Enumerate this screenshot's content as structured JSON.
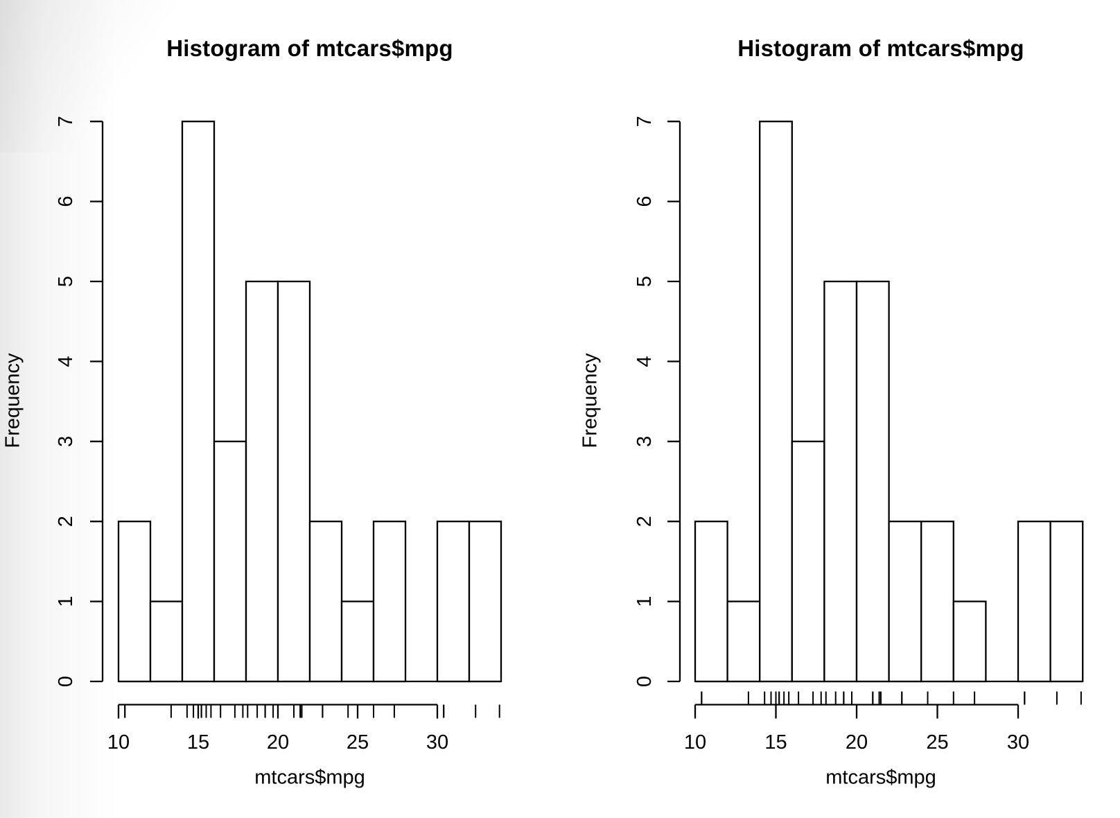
{
  "window": {
    "background": "#ffffff",
    "edge_shade_color": "#e9e9e9",
    "line_color": "#000000",
    "bar_fill": "#ffffff"
  },
  "panels": [
    {
      "title": "Histogram of mtcars$mpg",
      "xlabel": "mtcars$mpg",
      "ylabel": "Frequency"
    },
    {
      "title": "Histogram of mtcars$mpg",
      "xlabel": "mtcars$mpg",
      "ylabel": "Frequency"
    }
  ],
  "chart_data": [
    {
      "type": "bar",
      "subtype": "histogram",
      "title": "Histogram of mtcars$mpg",
      "xlabel": "mtcars$mpg",
      "ylabel": "Frequency",
      "bin_breaks": [
        10,
        12,
        14,
        16,
        18,
        20,
        22,
        24,
        26,
        28,
        30,
        32,
        34
      ],
      "counts": [
        2,
        1,
        7,
        3,
        5,
        5,
        2,
        1,
        2,
        0,
        2,
        2
      ],
      "interval_closure": "left",
      "x_ticks": [
        10,
        15,
        20,
        25,
        30
      ],
      "y_ticks": [
        0,
        1,
        2,
        3,
        4,
        5,
        6,
        7
      ],
      "xlim": [
        10,
        34
      ],
      "ylim": [
        0,
        7
      ],
      "grid": false,
      "legend": "none",
      "rug_side": "below-axis",
      "rug_values": [
        21.0,
        21.0,
        22.8,
        21.4,
        18.7,
        18.1,
        14.3,
        24.4,
        22.8,
        19.2,
        17.8,
        16.4,
        17.3,
        15.2,
        10.4,
        10.4,
        14.7,
        32.4,
        30.4,
        33.9,
        21.5,
        15.5,
        15.2,
        13.3,
        19.2,
        27.3,
        26.0,
        30.4,
        15.8,
        19.7,
        15.0,
        21.4
      ]
    },
    {
      "type": "bar",
      "subtype": "histogram",
      "title": "Histogram of mtcars$mpg",
      "xlabel": "mtcars$mpg",
      "ylabel": "Frequency",
      "bin_breaks": [
        10,
        12,
        14,
        16,
        18,
        20,
        22,
        24,
        26,
        28,
        30,
        32,
        34
      ],
      "counts": [
        2,
        1,
        7,
        3,
        5,
        5,
        2,
        2,
        1,
        0,
        2,
        2
      ],
      "interval_closure": "right",
      "x_ticks": [
        10,
        15,
        20,
        25,
        30
      ],
      "y_ticks": [
        0,
        1,
        2,
        3,
        4,
        5,
        6,
        7
      ],
      "xlim": [
        10,
        34
      ],
      "ylim": [
        0,
        7
      ],
      "grid": false,
      "legend": "none",
      "rug_side": "above-axis",
      "rug_values": [
        21.0,
        21.0,
        22.8,
        21.4,
        18.7,
        18.1,
        14.3,
        24.4,
        22.8,
        19.2,
        17.8,
        16.4,
        17.3,
        15.2,
        10.4,
        10.4,
        14.7,
        32.4,
        30.4,
        33.9,
        21.5,
        15.5,
        15.2,
        13.3,
        19.2,
        27.3,
        26.0,
        30.4,
        15.8,
        19.7,
        15.0,
        21.4
      ]
    }
  ]
}
